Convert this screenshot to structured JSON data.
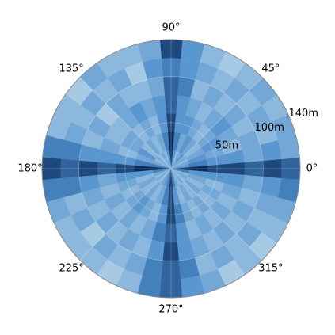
{
  "chart_data": {
    "type": "polar-heatmap",
    "theta": [
      0,
      10,
      20,
      30,
      40,
      50,
      60,
      70,
      80,
      90,
      100,
      110,
      120,
      130,
      140,
      150,
      160,
      170,
      180,
      190,
      200,
      210,
      220,
      230,
      240,
      250,
      260,
      270,
      280,
      290,
      300,
      310,
      320,
      330,
      340,
      350
    ],
    "r_bins": [
      0,
      20,
      40,
      60,
      80,
      100,
      120,
      140
    ],
    "values": [
      [
        9,
        9,
        8,
        8,
        7,
        8,
        7
      ],
      [
        5,
        6,
        5,
        5,
        4,
        5,
        4
      ],
      [
        4,
        5,
        4,
        3,
        4,
        3,
        4
      ],
      [
        3,
        4,
        5,
        4,
        3,
        4,
        3
      ],
      [
        4,
        3,
        4,
        5,
        4,
        3,
        4
      ],
      [
        5,
        4,
        3,
        4,
        3,
        4,
        3
      ],
      [
        4,
        5,
        4,
        3,
        4,
        3,
        2
      ],
      [
        3,
        4,
        5,
        4,
        3,
        4,
        3
      ],
      [
        5,
        6,
        5,
        5,
        6,
        5,
        5
      ],
      [
        9,
        9,
        8,
        7,
        7,
        6,
        8
      ],
      [
        5,
        6,
        5,
        5,
        4,
        5,
        4
      ],
      [
        3,
        4,
        3,
        4,
        3,
        2,
        3
      ],
      [
        4,
        3,
        4,
        5,
        3,
        4,
        3
      ],
      [
        3,
        4,
        3,
        4,
        4,
        3,
        4
      ],
      [
        4,
        3,
        4,
        3,
        2,
        4,
        2
      ],
      [
        3,
        5,
        4,
        3,
        4,
        3,
        3
      ],
      [
        4,
        4,
        3,
        4,
        3,
        4,
        3
      ],
      [
        6,
        6,
        5,
        5,
        5,
        6,
        6
      ],
      [
        9,
        9,
        8,
        7,
        8,
        7,
        8
      ],
      [
        6,
        5,
        5,
        4,
        5,
        6,
        6
      ],
      [
        4,
        3,
        4,
        3,
        4,
        3,
        4
      ],
      [
        3,
        4,
        3,
        4,
        3,
        4,
        3
      ],
      [
        4,
        3,
        4,
        3,
        4,
        2,
        3
      ],
      [
        3,
        4,
        5,
        4,
        3,
        4,
        3
      ],
      [
        4,
        3,
        4,
        3,
        4,
        3,
        2
      ],
      [
        5,
        4,
        3,
        4,
        3,
        4,
        3
      ],
      [
        6,
        6,
        5,
        6,
        5,
        6,
        6
      ],
      [
        9,
        8,
        8,
        7,
        8,
        7,
        7
      ],
      [
        6,
        5,
        6,
        5,
        5,
        6,
        5
      ],
      [
        4,
        3,
        4,
        3,
        4,
        3,
        4
      ],
      [
        3,
        4,
        3,
        4,
        3,
        4,
        2
      ],
      [
        4,
        3,
        4,
        3,
        4,
        3,
        3
      ],
      [
        3,
        4,
        3,
        4,
        3,
        4,
        2
      ],
      [
        4,
        3,
        4,
        3,
        4,
        3,
        3
      ],
      [
        3,
        4,
        3,
        4,
        3,
        4,
        4
      ],
      [
        6,
        5,
        5,
        5,
        4,
        5,
        6
      ]
    ],
    "colors": [
      "#a6c9e4",
      "#4d8ecb",
      "#0c2c5e"
    ],
    "rlim": [
      0,
      140
    ],
    "rticks": [
      {
        "value": 50,
        "label": "50m"
      },
      {
        "value": 100,
        "label": "100m"
      },
      {
        "value": 140,
        "label": "140m"
      }
    ],
    "thetaticks": [
      {
        "value": 0,
        "label": "0°"
      },
      {
        "value": 45,
        "label": "45°"
      },
      {
        "value": 90,
        "label": "90°"
      },
      {
        "value": 135,
        "label": "135°"
      },
      {
        "value": 180,
        "label": "180°"
      },
      {
        "value": 225,
        "label": "225°"
      },
      {
        "value": 270,
        "label": "270°"
      },
      {
        "value": 315,
        "label": "315°"
      }
    ],
    "grid": true
  }
}
